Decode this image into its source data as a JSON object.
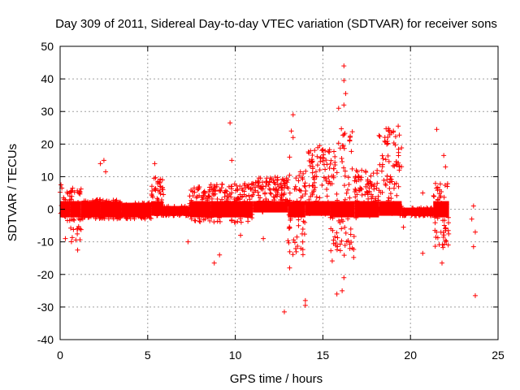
{
  "chart_data": {
    "type": "scatter",
    "title": "Day 309 of 2011, Sidereal Day-to-day VTEC variation (SDTVAR) for receiver sons",
    "xlabel": "GPS time / hours",
    "ylabel": "SDTVAR / TECUs",
    "xlim": [
      0,
      25
    ],
    "ylim": [
      -40,
      50
    ],
    "xticks": [
      "0",
      "5",
      "10",
      "15",
      "20",
      "25"
    ],
    "yticks": [
      "50",
      "40",
      "30",
      "20",
      "10",
      "0",
      "-10",
      "-20",
      "-30",
      "-40"
    ],
    "grid": true,
    "marker": "plus",
    "series_color": "#ff0000",
    "notable_points": [
      {
        "x": 0.05,
        "y": 7.5
      },
      {
        "x": 0.1,
        "y": 6.5
      },
      {
        "x": 0.3,
        "y": -9
      },
      {
        "x": 1.0,
        "y": -12.5
      },
      {
        "x": 2.3,
        "y": 14
      },
      {
        "x": 2.5,
        "y": 15
      },
      {
        "x": 2.6,
        "y": 11.5
      },
      {
        "x": 5.4,
        "y": 14
      },
      {
        "x": 7.3,
        "y": -10
      },
      {
        "x": 8.8,
        "y": -16.5
      },
      {
        "x": 9.1,
        "y": -14
      },
      {
        "x": 9.7,
        "y": 26.5
      },
      {
        "x": 9.8,
        "y": 15
      },
      {
        "x": 10.3,
        "y": -8
      },
      {
        "x": 11.6,
        "y": -9
      },
      {
        "x": 12.8,
        "y": -31.5
      },
      {
        "x": 13.1,
        "y": -18
      },
      {
        "x": 13.3,
        "y": 29
      },
      {
        "x": 13.2,
        "y": 24
      },
      {
        "x": 13.3,
        "y": 22
      },
      {
        "x": 13.1,
        "y": 16
      },
      {
        "x": 14.0,
        "y": -28
      },
      {
        "x": 14.0,
        "y": -29.5
      },
      {
        "x": 15.8,
        "y": -26
      },
      {
        "x": 16.1,
        "y": -25
      },
      {
        "x": 16.2,
        "y": 44
      },
      {
        "x": 16.2,
        "y": 39.5
      },
      {
        "x": 16.3,
        "y": 35.5
      },
      {
        "x": 16.2,
        "y": 32
      },
      {
        "x": 15.9,
        "y": 31
      },
      {
        "x": 16.2,
        "y": -21
      },
      {
        "x": 19.3,
        "y": 25.5
      },
      {
        "x": 19.6,
        "y": -5.5
      },
      {
        "x": 20.7,
        "y": -13.5
      },
      {
        "x": 20.7,
        "y": 5
      },
      {
        "x": 21.5,
        "y": 24.5
      },
      {
        "x": 21.8,
        "y": -16.5
      },
      {
        "x": 21.9,
        "y": 16.5
      },
      {
        "x": 22.0,
        "y": 13
      },
      {
        "x": 22.1,
        "y": 7
      },
      {
        "x": 23.5,
        "y": -3
      },
      {
        "x": 23.6,
        "y": 1
      },
      {
        "x": 23.7,
        "y": -7
      },
      {
        "x": 23.6,
        "y": -11.5
      },
      {
        "x": 23.7,
        "y": -26.5
      }
    ],
    "trend_segments": [
      {
        "x_start": 0,
        "x_end": 0.6,
        "y_min": -4,
        "y_max": 6
      },
      {
        "x_start": 0.6,
        "x_end": 1.2,
        "y_min": -10,
        "y_max": 7
      },
      {
        "x_start": 1.2,
        "x_end": 2.3,
        "y_min": -3,
        "y_max": 3
      },
      {
        "x_start": 2.3,
        "x_end": 3.5,
        "y_min": -3,
        "y_max": 3
      },
      {
        "x_start": 3.5,
        "x_end": 5.2,
        "y_min": -3,
        "y_max": 2
      },
      {
        "x_start": 5.2,
        "x_end": 5.9,
        "y_min": -2,
        "y_max": 10
      },
      {
        "x_start": 5.9,
        "x_end": 7.4,
        "y_min": -2,
        "y_max": 1
      },
      {
        "x_start": 7.4,
        "x_end": 8.6,
        "y_min": -4,
        "y_max": 7
      },
      {
        "x_start": 8.6,
        "x_end": 11.0,
        "y_min": -4,
        "y_max": 8
      },
      {
        "x_start": 11.0,
        "x_end": 13.0,
        "y_min": -1,
        "y_max": 10
      },
      {
        "x_start": 13.0,
        "x_end": 14.0,
        "y_min": -14,
        "y_max": 12
      },
      {
        "x_start": 14.0,
        "x_end": 15.4,
        "y_min": -2,
        "y_max": 20
      },
      {
        "x_start": 15.4,
        "x_end": 16.8,
        "y_min": -16,
        "y_max": 25
      },
      {
        "x_start": 16.8,
        "x_end": 18.2,
        "y_min": -3,
        "y_max": 12
      },
      {
        "x_start": 18.2,
        "x_end": 19.5,
        "y_min": -2,
        "y_max": 25
      },
      {
        "x_start": 19.5,
        "x_end": 21.3,
        "y_min": -2,
        "y_max": 0.5
      },
      {
        "x_start": 21.3,
        "x_end": 22.2,
        "y_min": -12,
        "y_max": 8
      }
    ]
  }
}
